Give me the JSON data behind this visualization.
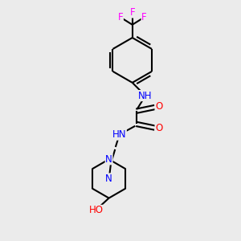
{
  "background_color": "#ebebeb",
  "bond_color": "#000000",
  "N_color": "#0000ff",
  "O_color": "#ff0000",
  "F_color": "#ff00ff",
  "line_width": 1.5,
  "font_size": 8.5,
  "fig_width": 3.0,
  "fig_height": 3.0,
  "dpi": 100,
  "xlim": [
    0,
    10
  ],
  "ylim": [
    0,
    10
  ]
}
